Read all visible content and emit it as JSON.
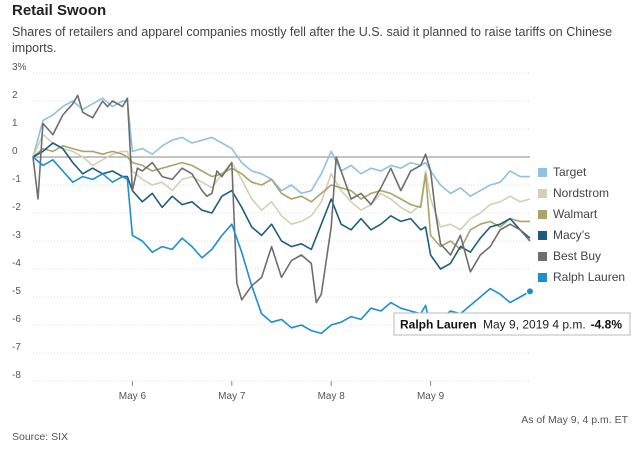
{
  "title": "Retail Swoon",
  "subtitle": "Shares of retailers and apparel companies mostly fell after the U.S. said it planned to raise tariffs on Chinese imports.",
  "as_of": "As of May 9, 4 p.m. ET",
  "source": "Source: SIX",
  "tooltip": {
    "name": "Ralph Lauren",
    "time": "May 9, 2019 4 p.m.",
    "value": "-4.8%"
  },
  "chart_data": {
    "type": "line",
    "title": "Retail Swoon",
    "xlabel": "",
    "ylabel": "",
    "ylim": [
      -8,
      3
    ],
    "yticks": [
      3,
      2,
      1,
      0,
      -1,
      -2,
      -3,
      -4,
      -5,
      -6,
      -7,
      -8
    ],
    "ytick_labels": [
      "3%",
      "2",
      "1",
      "0",
      "-1",
      "-2",
      "-3",
      "-4",
      "-5",
      "-6",
      "-7",
      "-8"
    ],
    "xlim": [
      0,
      5
    ],
    "x_ticks": [
      1,
      2,
      3,
      4
    ],
    "x_tick_labels": [
      "May 6",
      "May 7",
      "May 8",
      "May 9"
    ],
    "grid": "horizontal",
    "legend_position": "right",
    "series": [
      {
        "name": "Target",
        "color": "#8fc1e3",
        "x": [
          0,
          0.1,
          0.2,
          0.3,
          0.4,
          0.5,
          0.6,
          0.7,
          0.8,
          0.9,
          0.95,
          1.0,
          1.1,
          1.2,
          1.3,
          1.4,
          1.5,
          1.6,
          1.7,
          1.8,
          1.9,
          2.0,
          2.1,
          2.2,
          2.3,
          2.4,
          2.5,
          2.6,
          2.7,
          2.8,
          2.9,
          3.0,
          3.1,
          3.2,
          3.3,
          3.4,
          3.5,
          3.6,
          3.7,
          3.8,
          3.9,
          3.95,
          4.0,
          4.1,
          4.2,
          4.3,
          4.4,
          4.5,
          4.6,
          4.7,
          4.8,
          4.9,
          5.0
        ],
        "y": [
          0.0,
          1.3,
          1.5,
          1.8,
          2.0,
          1.7,
          1.9,
          2.1,
          1.8,
          2.0,
          2.0,
          0.2,
          0.3,
          0.1,
          0.4,
          0.6,
          0.7,
          0.5,
          0.6,
          0.7,
          0.5,
          0.3,
          -0.2,
          -0.5,
          -0.6,
          -0.8,
          -1.2,
          -1.0,
          -1.3,
          -1.2,
          -0.6,
          0.2,
          -0.5,
          -0.3,
          -0.6,
          -0.4,
          -0.5,
          -0.3,
          -0.4,
          -0.2,
          -0.3,
          -0.2,
          -0.5,
          -1.0,
          -1.3,
          -1.1,
          -1.4,
          -1.2,
          -1.0,
          -0.9,
          -0.5,
          -0.7,
          -0.7
        ]
      },
      {
        "name": "Nordstrom",
        "color": "#d3d0b4",
        "x": [
          0,
          0.1,
          0.2,
          0.3,
          0.4,
          0.5,
          0.6,
          0.7,
          0.8,
          0.9,
          0.95,
          1.0,
          1.1,
          1.2,
          1.3,
          1.4,
          1.5,
          1.6,
          1.7,
          1.8,
          1.9,
          2.0,
          2.1,
          2.2,
          2.3,
          2.4,
          2.5,
          2.6,
          2.7,
          2.8,
          2.9,
          3.0,
          3.1,
          3.2,
          3.3,
          3.4,
          3.5,
          3.6,
          3.7,
          3.8,
          3.9,
          3.95,
          4.0,
          4.1,
          4.2,
          4.3,
          4.4,
          4.5,
          4.6,
          4.7,
          4.8,
          4.9,
          5.0
        ],
        "y": [
          0.0,
          0.8,
          0.5,
          0.3,
          0.2,
          0.0,
          -0.3,
          -0.1,
          0.1,
          0.2,
          0.2,
          -0.5,
          -0.8,
          -1.0,
          -0.9,
          -1.2,
          -0.8,
          -0.7,
          -0.9,
          -1.1,
          -0.6,
          -0.2,
          -0.8,
          -1.5,
          -1.9,
          -1.6,
          -2.1,
          -2.4,
          -2.3,
          -2.1,
          -1.6,
          -0.6,
          -1.2,
          -1.6,
          -1.9,
          -1.7,
          -1.3,
          -1.5,
          -1.8,
          -2.0,
          -1.7,
          -0.5,
          -1.5,
          -2.5,
          -2.4,
          -2.6,
          -2.2,
          -2.0,
          -1.7,
          -1.6,
          -1.4,
          -1.6,
          -1.5
        ]
      },
      {
        "name": "Walmart",
        "color": "#a9a46a",
        "x": [
          0,
          0.1,
          0.2,
          0.3,
          0.4,
          0.5,
          0.6,
          0.7,
          0.8,
          0.9,
          0.95,
          1.0,
          1.1,
          1.2,
          1.3,
          1.4,
          1.5,
          1.6,
          1.7,
          1.8,
          1.9,
          2.0,
          2.1,
          2.2,
          2.3,
          2.4,
          2.5,
          2.6,
          2.7,
          2.8,
          2.9,
          3.0,
          3.1,
          3.2,
          3.3,
          3.4,
          3.5,
          3.6,
          3.7,
          3.8,
          3.9,
          3.95,
          4.0,
          4.1,
          4.2,
          4.3,
          4.4,
          4.5,
          4.6,
          4.7,
          4.8,
          4.9,
          5.0
        ],
        "y": [
          0.0,
          0.3,
          0.2,
          0.4,
          0.3,
          0.2,
          0.2,
          0.1,
          0.2,
          0.1,
          0.0,
          -0.2,
          -0.3,
          -0.5,
          -0.4,
          -0.3,
          -0.2,
          -0.3,
          -0.5,
          -0.7,
          -0.6,
          -0.4,
          -0.6,
          -0.9,
          -1.0,
          -0.8,
          -1.3,
          -1.5,
          -1.4,
          -1.6,
          -1.3,
          -1.0,
          -1.1,
          -1.2,
          -1.5,
          -1.3,
          -1.2,
          -1.3,
          -1.5,
          -1.7,
          -1.8,
          -0.6,
          -2.8,
          -3.2,
          -3.0,
          -3.3,
          -2.6,
          -2.4,
          -2.3,
          -2.5,
          -2.2,
          -2.3,
          -2.3
        ]
      },
      {
        "name": "Macy’s",
        "color": "#1c5e82",
        "x": [
          0,
          0.1,
          0.2,
          0.3,
          0.4,
          0.5,
          0.6,
          0.7,
          0.8,
          0.9,
          0.95,
          1.0,
          1.1,
          1.2,
          1.3,
          1.4,
          1.5,
          1.6,
          1.7,
          1.8,
          1.9,
          2.0,
          2.1,
          2.2,
          2.3,
          2.4,
          2.5,
          2.6,
          2.7,
          2.8,
          2.9,
          3.0,
          3.1,
          3.2,
          3.3,
          3.4,
          3.5,
          3.6,
          3.7,
          3.8,
          3.9,
          3.95,
          4.0,
          4.1,
          4.2,
          4.3,
          4.4,
          4.5,
          4.6,
          4.7,
          4.8,
          4.9,
          5.0
        ],
        "y": [
          0.0,
          0.2,
          0.5,
          0.3,
          -0.2,
          -0.6,
          -0.4,
          -0.6,
          -0.5,
          -0.7,
          -0.7,
          -1.2,
          -1.6,
          -1.3,
          -1.8,
          -1.4,
          -1.7,
          -1.6,
          -1.9,
          -2.0,
          -1.4,
          -1.2,
          -1.8,
          -2.5,
          -2.8,
          -2.4,
          -3.0,
          -3.2,
          -3.1,
          -3.3,
          -2.4,
          -1.5,
          -2.4,
          -2.6,
          -2.2,
          -2.6,
          -2.4,
          -2.1,
          -2.3,
          -2.2,
          -2.6,
          -2.5,
          -3.5,
          -4.0,
          -3.8,
          -3.2,
          -3.4,
          -2.9,
          -2.5,
          -2.4,
          -2.2,
          -2.6,
          -2.9
        ]
      },
      {
        "name": "Best Buy",
        "color": "#6e6e6e",
        "x": [
          0,
          0.05,
          0.1,
          0.15,
          0.2,
          0.3,
          0.4,
          0.45,
          0.5,
          0.6,
          0.7,
          0.75,
          0.8,
          0.9,
          0.95,
          1.0,
          1.05,
          1.1,
          1.2,
          1.3,
          1.4,
          1.5,
          1.6,
          1.7,
          1.75,
          1.8,
          1.85,
          1.9,
          2.0,
          2.05,
          2.1,
          2.2,
          2.3,
          2.4,
          2.5,
          2.6,
          2.7,
          2.8,
          2.85,
          2.9,
          3.0,
          3.05,
          3.1,
          3.2,
          3.3,
          3.4,
          3.5,
          3.6,
          3.7,
          3.8,
          3.9,
          3.95,
          4.0,
          4.05,
          4.1,
          4.2,
          4.3,
          4.4,
          4.5,
          4.6,
          4.7,
          4.8,
          4.9,
          5.0
        ],
        "y": [
          0.0,
          -1.5,
          1.2,
          1.0,
          0.8,
          1.5,
          1.9,
          2.2,
          1.6,
          1.4,
          2.0,
          1.8,
          2.0,
          1.8,
          2.1,
          -1.2,
          -0.4,
          -0.5,
          -0.2,
          -0.7,
          -0.8,
          -0.4,
          -0.6,
          -1.2,
          -1.4,
          -1.3,
          -0.5,
          -0.7,
          -0.2,
          -4.5,
          -5.1,
          -4.6,
          -4.3,
          -3.2,
          -4.3,
          -3.7,
          -3.5,
          -3.8,
          -5.2,
          -4.9,
          -2.5,
          0.0,
          -0.5,
          -1.5,
          -1.3,
          -1.7,
          -1.1,
          -0.4,
          -1.2,
          -0.5,
          -0.3,
          0.1,
          -0.5,
          -2.0,
          -3.1,
          -3.5,
          -2.8,
          -4.1,
          -3.5,
          -3.2,
          -2.6,
          -2.4,
          -2.6,
          -3.0
        ]
      },
      {
        "name": "Ralph Lauren",
        "color": "#1d8fd1",
        "x": [
          0,
          0.1,
          0.2,
          0.3,
          0.4,
          0.5,
          0.6,
          0.7,
          0.8,
          0.9,
          0.95,
          1.0,
          1.1,
          1.2,
          1.3,
          1.4,
          1.5,
          1.6,
          1.7,
          1.8,
          1.9,
          2.0,
          2.1,
          2.2,
          2.3,
          2.4,
          2.5,
          2.6,
          2.7,
          2.8,
          2.9,
          3.0,
          3.1,
          3.2,
          3.3,
          3.4,
          3.5,
          3.6,
          3.7,
          3.8,
          3.9,
          3.95,
          4.0,
          4.1,
          4.2,
          4.3,
          4.4,
          4.5,
          4.6,
          4.7,
          4.8,
          4.9,
          5.0
        ],
        "y": [
          0.0,
          -0.3,
          -0.1,
          -0.5,
          -0.9,
          -0.7,
          -0.8,
          -0.6,
          -0.9,
          -0.7,
          -0.8,
          -2.8,
          -3.0,
          -3.4,
          -3.2,
          -3.3,
          -2.9,
          -3.2,
          -3.6,
          -3.3,
          -2.8,
          -2.4,
          -3.4,
          -4.6,
          -5.6,
          -5.9,
          -5.8,
          -6.1,
          -6.0,
          -6.2,
          -6.3,
          -6.0,
          -5.9,
          -5.7,
          -5.8,
          -5.4,
          -5.5,
          -5.2,
          -5.4,
          -5.5,
          -5.6,
          -5.3,
          -6.1,
          -5.8,
          -5.5,
          -5.6,
          -5.3,
          -5.0,
          -4.7,
          -4.9,
          -5.2,
          -5.0,
          -4.8
        ]
      }
    ]
  }
}
